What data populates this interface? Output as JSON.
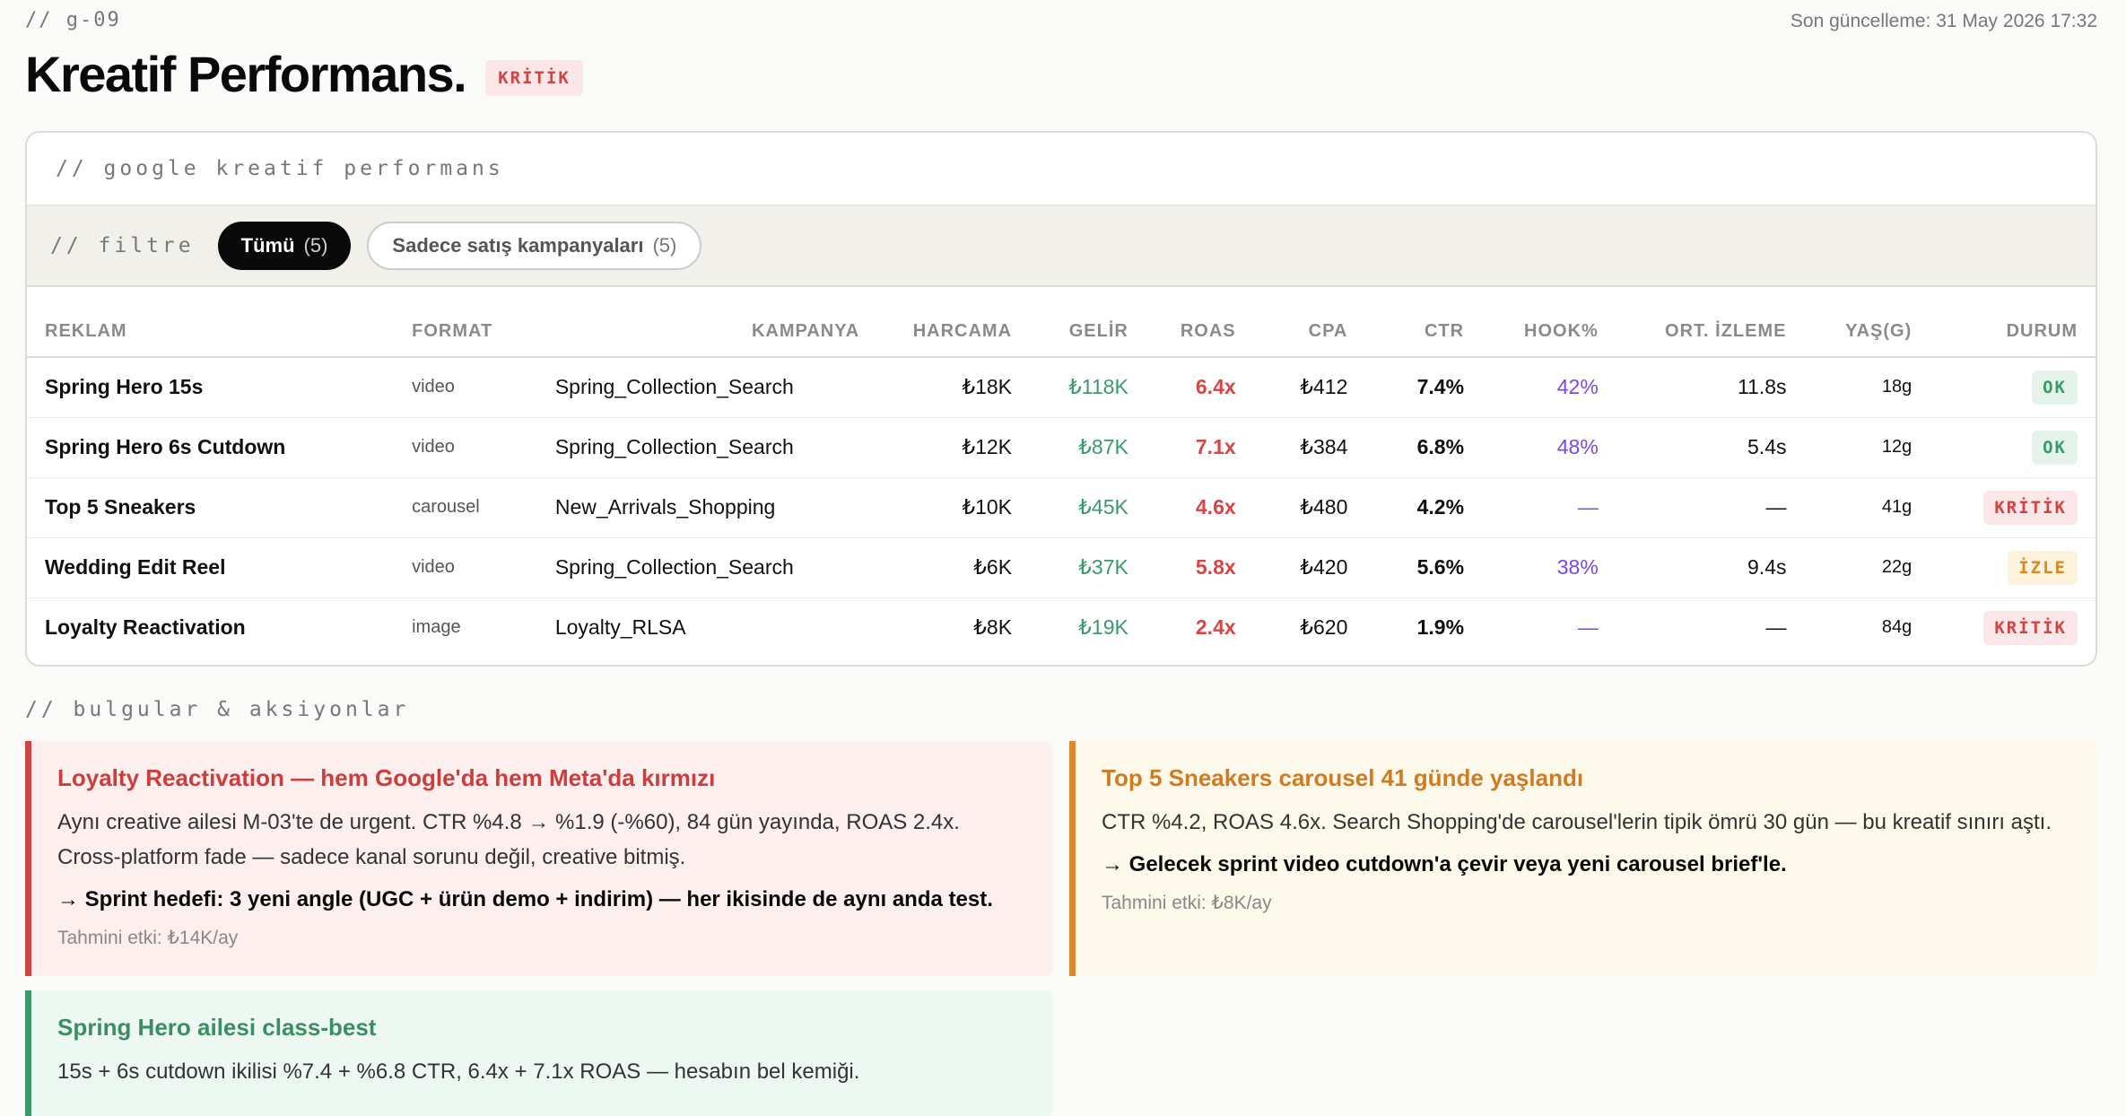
{
  "header": {
    "page_code": "// g-09",
    "last_updated": "Son güncelleme: 31 May 2026 17:32",
    "title": "Kreatif Performans.",
    "badge": "KRİTİK"
  },
  "card": {
    "label": "// google kreatif performans",
    "filter": {
      "label": "// filtre",
      "options": [
        {
          "label": "Tümü",
          "count": "(5)",
          "active": true
        },
        {
          "label": "Sadece satış kampanyaları",
          "count": "(5)",
          "active": false
        }
      ]
    },
    "columns": [
      "REKLAM",
      "FORMAT",
      "KAMPANYA",
      "HARCAMA",
      "GELİR",
      "ROAS",
      "CPA",
      "CTR",
      "HOOK%",
      "ORT. İZLEME",
      "YAŞ(G)",
      "DURUM"
    ],
    "rows": [
      {
        "ad": "Spring Hero 15s",
        "format": "video",
        "campaign": "Spring_Collection_Search",
        "spend": "₺18K",
        "revenue": "₺118K",
        "roas": "6.4x",
        "cpa": "₺412",
        "ctr": "7.4%",
        "hook": "42%",
        "avg_watch": "11.8s",
        "age": "18g",
        "status": "OK"
      },
      {
        "ad": "Spring Hero 6s Cutdown",
        "format": "video",
        "campaign": "Spring_Collection_Search",
        "spend": "₺12K",
        "revenue": "₺87K",
        "roas": "7.1x",
        "cpa": "₺384",
        "ctr": "6.8%",
        "hook": "48%",
        "avg_watch": "5.4s",
        "age": "12g",
        "status": "OK"
      },
      {
        "ad": "Top 5 Sneakers",
        "format": "carousel",
        "campaign": "New_Arrivals_Shopping",
        "spend": "₺10K",
        "revenue": "₺45K",
        "roas": "4.6x",
        "cpa": "₺480",
        "ctr": "4.2%",
        "hook": "—",
        "avg_watch": "—",
        "age": "41g",
        "status": "KRİTİK"
      },
      {
        "ad": "Wedding Edit Reel",
        "format": "video",
        "campaign": "Spring_Collection_Search",
        "spend": "₺6K",
        "revenue": "₺37K",
        "roas": "5.8x",
        "cpa": "₺420",
        "ctr": "5.6%",
        "hook": "38%",
        "avg_watch": "9.4s",
        "age": "22g",
        "status": "İZLE"
      },
      {
        "ad": "Loyalty Reactivation",
        "format": "image",
        "campaign": "Loyalty_RLSA",
        "spend": "₺8K",
        "revenue": "₺19K",
        "roas": "2.4x",
        "cpa": "₺620",
        "ctr": "1.9%",
        "hook": "—",
        "avg_watch": "—",
        "age": "84g",
        "status": "KRİTİK"
      }
    ]
  },
  "status_styles": {
    "OK": {
      "color": "#3a9a6a",
      "bg": "#e4f4ea"
    },
    "KRİTİK": {
      "color": "#d04444",
      "bg": "#fbe7e7"
    },
    "İZLE": {
      "color": "#d9891f",
      "bg": "#fdf2dc"
    }
  },
  "findings_section": {
    "label": "// bulgular & aksiyonlar",
    "items": [
      {
        "title": "Loyalty Reactivation — hem Google'da hem Meta'da kırmızı",
        "body": "Aynı creative ailesi M-03'te de urgent. CTR %4.8 → %1.9 (-%60), 84 gün yayında, ROAS 2.4x. Cross-platform fade — sadece kanal sorunu değil, creative bitmiş.",
        "action": "→ Sprint hedefi: 3 yeni angle (UGC + ürün demo + indirim) — her ikisinde de aynı anda test.",
        "impact": "Tahmini etki: ₺14K/ay",
        "accent": "#d04444",
        "bg": "#fcefee",
        "title_color": "#cc3d3d"
      },
      {
        "title": "Top 5 Sneakers carousel 41 günde yaşlandı",
        "body": "CTR %4.2, ROAS 4.6x. Search Shopping'de carousel'lerin tipik ömrü 30 gün — bu kreatif sınırı aştı.",
        "action": "→ Gelecek sprint video cutdown'a çevir veya yeni carousel brief'le.",
        "impact": "Tahmini etki: ₺8K/ay",
        "accent": "#d9892f",
        "bg": "#fdf9ea",
        "title_color": "#d07a22"
      },
      {
        "title": "Spring Hero ailesi class-best",
        "body": "15s + 6s cutdown ikilisi %7.4 + %6.8 CTR, 6.4x + 7.1x ROAS — hesabın bel kemiği.",
        "action": "",
        "impact": "",
        "accent": "#3a9a6a",
        "bg": "#eef8f2",
        "title_color": "#3a8f62"
      }
    ]
  }
}
